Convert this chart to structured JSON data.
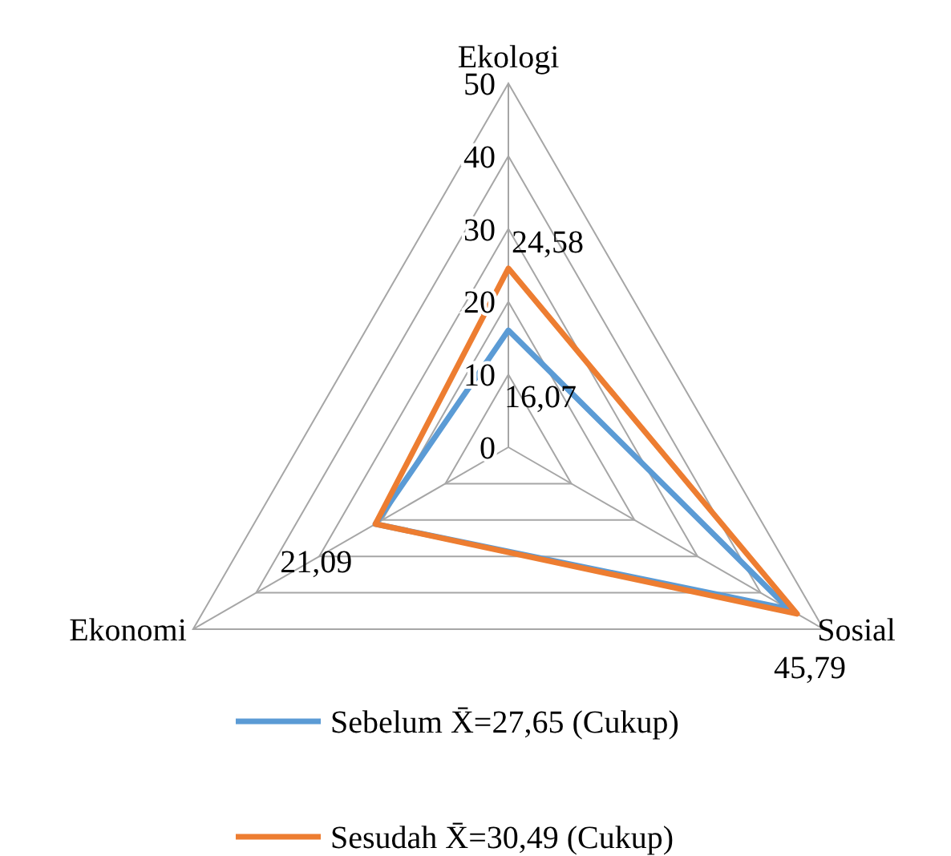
{
  "chart_data": {
    "type": "radar",
    "categories": [
      "Ekologi",
      "Sosial",
      "Ekonomi"
    ],
    "series": [
      {
        "name": "Sebelum X̄=27,65 (Cukup)",
        "color": "#5b9bd5",
        "values": [
          16.07,
          44.5,
          21.09
        ],
        "value_labels": [
          "16,07",
          null,
          null
        ]
      },
      {
        "name": "Sesudah X̄=30,49 (Cukup)",
        "color": "#ed7d31",
        "values": [
          24.58,
          45.79,
          21.09
        ],
        "value_labels": [
          "24,58",
          "45,79",
          "21,09"
        ]
      }
    ],
    "ylim": [
      0,
      50
    ],
    "yticks": [
      0,
      10,
      20,
      30,
      40,
      50
    ],
    "grid": true,
    "legend": "bottom",
    "marker": "none"
  }
}
